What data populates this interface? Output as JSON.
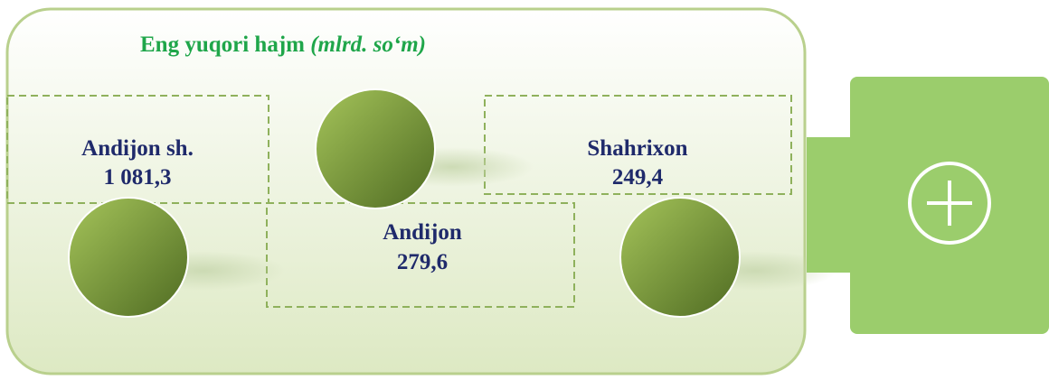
{
  "header": {
    "title": "Eng yuqori hajm",
    "unit": "(mlrd. so‘m)"
  },
  "items": [
    {
      "name": "Andijon sh.",
      "value": "1 081,3"
    },
    {
      "name": "Shahrixon",
      "value": "249,4"
    },
    {
      "name": "Andijon",
      "value": "279,6"
    }
  ]
}
